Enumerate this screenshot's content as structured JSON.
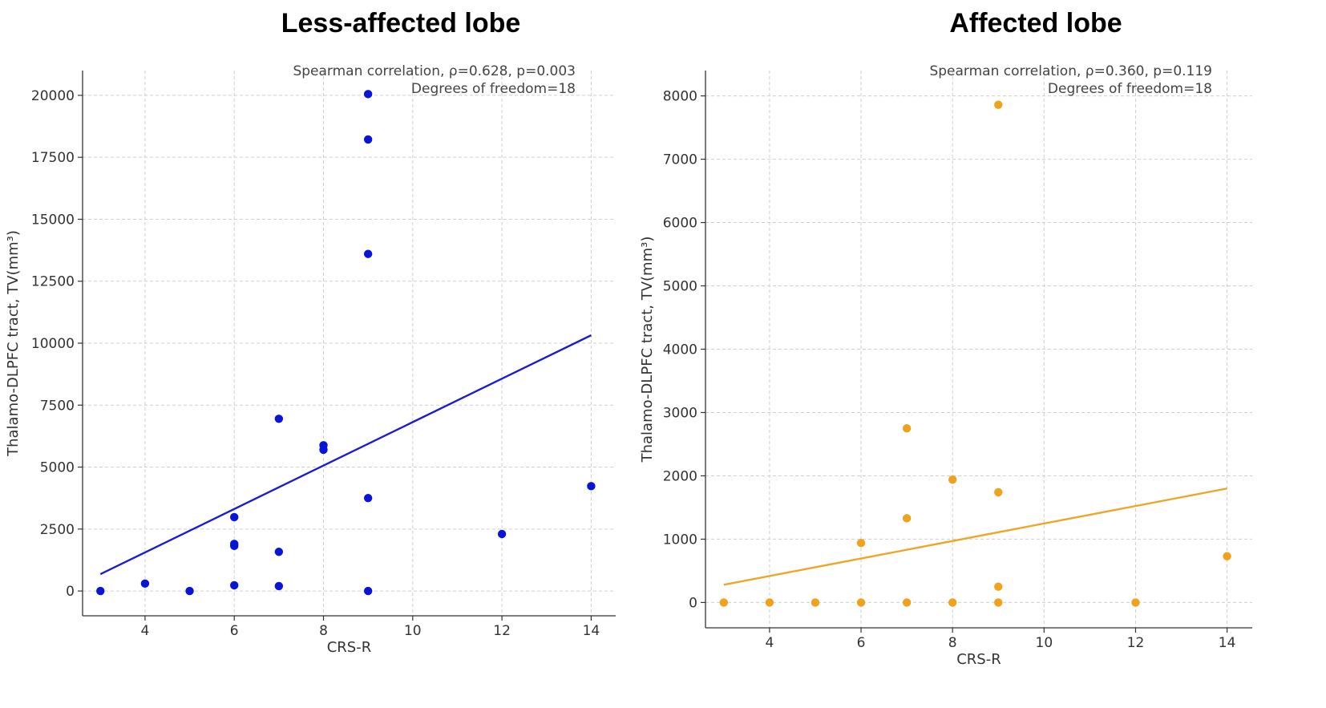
{
  "chart_data": [
    {
      "type": "scatter",
      "title": "Less-affected lobe",
      "xlabel": "CRS-R",
      "ylabel": "Thalamo-DLPFC tract, TV(mm³)",
      "xlim": [
        2.6,
        14.55
      ],
      "ylim": [
        -1000,
        21000
      ],
      "xticks": [
        4,
        6,
        8,
        10,
        12,
        14
      ],
      "xtick_labels": [
        "4",
        "6",
        "8",
        "10",
        "12",
        "14"
      ],
      "yticks": [
        0,
        2500,
        5000,
        7500,
        10000,
        12500,
        15000,
        17500,
        20000
      ],
      "ytick_labels": [
        "0",
        "2500",
        "5000",
        "7500",
        "10000",
        "12500",
        "15000",
        "17500",
        "20000"
      ],
      "annotation": [
        "Spearman correlation, ρ=0.628, p=0.003",
        "Degrees of freedom=18"
      ],
      "point_color": "#0a14d8",
      "line_color": "#1a1ed0",
      "points": [
        {
          "x": 3,
          "y": 0
        },
        {
          "x": 4,
          "y": 300
        },
        {
          "x": 5,
          "y": 0
        },
        {
          "x": 6,
          "y": 2980
        },
        {
          "x": 6,
          "y": 1900
        },
        {
          "x": 6,
          "y": 1820
        },
        {
          "x": 6,
          "y": 230
        },
        {
          "x": 7,
          "y": 6950
        },
        {
          "x": 7,
          "y": 1580
        },
        {
          "x": 7,
          "y": 200
        },
        {
          "x": 8,
          "y": 5880
        },
        {
          "x": 8,
          "y": 5700
        },
        {
          "x": 9,
          "y": 20050
        },
        {
          "x": 9,
          "y": 18220
        },
        {
          "x": 9,
          "y": 13600
        },
        {
          "x": 9,
          "y": 3750
        },
        {
          "x": 9,
          "y": 0
        },
        {
          "x": 12,
          "y": 2300
        },
        {
          "x": 14,
          "y": 4230
        }
      ],
      "fit_line": {
        "x": [
          3,
          14
        ],
        "y": [
          680,
          10320
        ]
      }
    },
    {
      "type": "scatter",
      "title": "Affected lobe",
      "xlabel": "CRS-R",
      "ylabel": "Thalamo-DLPFC tract, TV(mm³)",
      "xlim": [
        2.6,
        14.55
      ],
      "ylim": [
        -400,
        8400
      ],
      "xticks": [
        4,
        6,
        8,
        10,
        12,
        14
      ],
      "xtick_labels": [
        "4",
        "6",
        "8",
        "10",
        "12",
        "14"
      ],
      "yticks": [
        0,
        1000,
        2000,
        3000,
        4000,
        5000,
        6000,
        7000,
        8000
      ],
      "ytick_labels": [
        "0",
        "1000",
        "2000",
        "3000",
        "4000",
        "5000",
        "6000",
        "7000",
        "8000"
      ],
      "annotation": [
        "Spearman correlation, ρ=0.360, p=0.119",
        "Degrees of freedom=18"
      ],
      "point_color": "#f0a21c",
      "line_color": "#eba72a",
      "points": [
        {
          "x": 3,
          "y": 0
        },
        {
          "x": 4,
          "y": 0
        },
        {
          "x": 5,
          "y": 0
        },
        {
          "x": 6,
          "y": 940
        },
        {
          "x": 6,
          "y": 0
        },
        {
          "x": 7,
          "y": 2750
        },
        {
          "x": 7,
          "y": 1330
        },
        {
          "x": 7,
          "y": 0
        },
        {
          "x": 8,
          "y": 1940
        },
        {
          "x": 8,
          "y": 0
        },
        {
          "x": 9,
          "y": 7860
        },
        {
          "x": 9,
          "y": 1740
        },
        {
          "x": 9,
          "y": 250
        },
        {
          "x": 9,
          "y": 0
        },
        {
          "x": 12,
          "y": 0
        },
        {
          "x": 14,
          "y": 730
        }
      ],
      "fit_line": {
        "x": [
          3,
          14
        ],
        "y": [
          280,
          1800
        ]
      }
    }
  ]
}
